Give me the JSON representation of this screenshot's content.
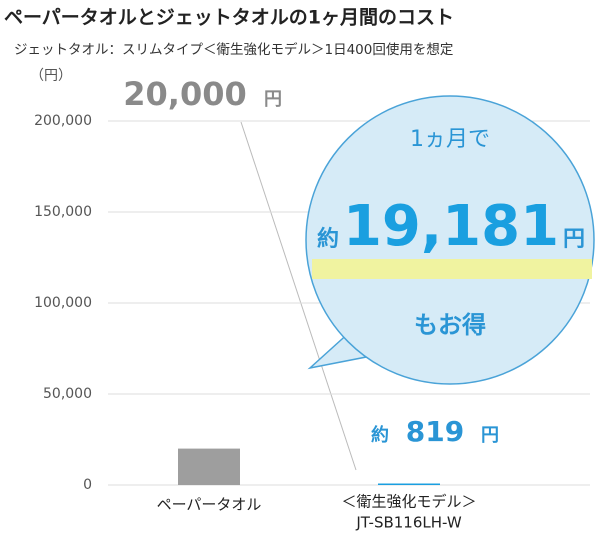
{
  "chart_data": {
    "type": "bar",
    "title": "ペーパータオルとジェットタオルの1ヶ月間のコスト",
    "subtitle": "ジェットタオル：スリムタイプ＜衛生強化モデル＞1日400回使用を想定",
    "y_unit_label": "（円）",
    "categories": [
      "ペーパータオル",
      [
        "＜衛生強化モデル＞",
        "JT-SB116LH-W"
      ]
    ],
    "values": [
      20000,
      819
    ],
    "value_labels": [
      "20,000",
      "819"
    ],
    "approx_label": "約",
    "unit_label": "円",
    "colors": [
      "#9e9e9e",
      "#1a9fe0"
    ],
    "label_colors": [
      "#8a8a8a",
      "#2a95d5"
    ],
    "callout": {
      "lead": "1ヵ月で",
      "prefix": "約",
      "amount": "19,181",
      "unit": "円",
      "tail": "もお得"
    },
    "ylim": [
      0,
      200000
    ],
    "yticks": [
      0,
      {
        "value": 50000,
        "label": "50,000"
      },
      {
        "value": 100000,
        "label": "100,000"
      },
      {
        "value": 150000,
        "label": "150,000"
      },
      {
        "value": 200000,
        "label": "200,000"
      }
    ],
    "grid": true
  }
}
